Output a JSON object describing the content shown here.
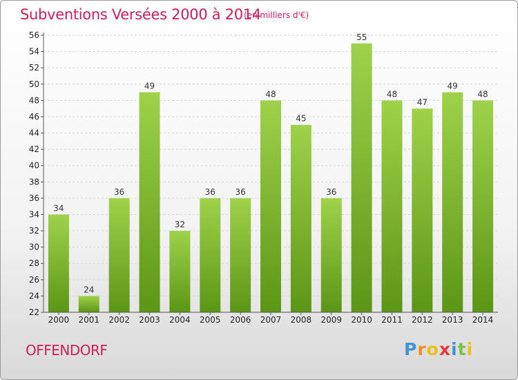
{
  "header": {
    "title": "Subventions Versées 2000 à 2014",
    "unit": "(en milliers d'€)"
  },
  "footer": {
    "commune": "OFFENDORF",
    "brand_letters": [
      {
        "ch": "P",
        "color": "#3f93d9"
      },
      {
        "ch": "r",
        "color": "#f28f1e"
      },
      {
        "ch": "o",
        "color": "#e8c21a"
      },
      {
        "ch": "x",
        "color": "#e23a3a"
      },
      {
        "ch": "i",
        "color": "#3f93d9"
      },
      {
        "ch": "t",
        "color": "#7cc242"
      },
      {
        "ch": "i",
        "color": "#e8c21a"
      }
    ]
  },
  "colors": {
    "title": "#c8205a",
    "bar_top": "#9fd24a",
    "bar_bottom": "#5c9616"
  },
  "chart_data": {
    "type": "bar",
    "title": "Subventions Versées 2000 à 2014",
    "subtitle": "(en milliers d'€)",
    "xlabel": "",
    "ylabel": "",
    "categories": [
      "2000",
      "2001",
      "2002",
      "2003",
      "2004",
      "2005",
      "2006",
      "2007",
      "2008",
      "2009",
      "2010",
      "2011",
      "2012",
      "2013",
      "2014"
    ],
    "values": [
      34,
      24,
      36,
      49,
      32,
      36,
      36,
      48,
      45,
      36,
      55,
      48,
      47,
      49,
      48
    ],
    "ylim": [
      22,
      56
    ],
    "yticks": [
      22,
      24,
      26,
      28,
      30,
      32,
      34,
      36,
      38,
      40,
      42,
      44,
      46,
      48,
      50,
      52,
      54,
      56
    ],
    "grid": true,
    "legend": "none"
  }
}
